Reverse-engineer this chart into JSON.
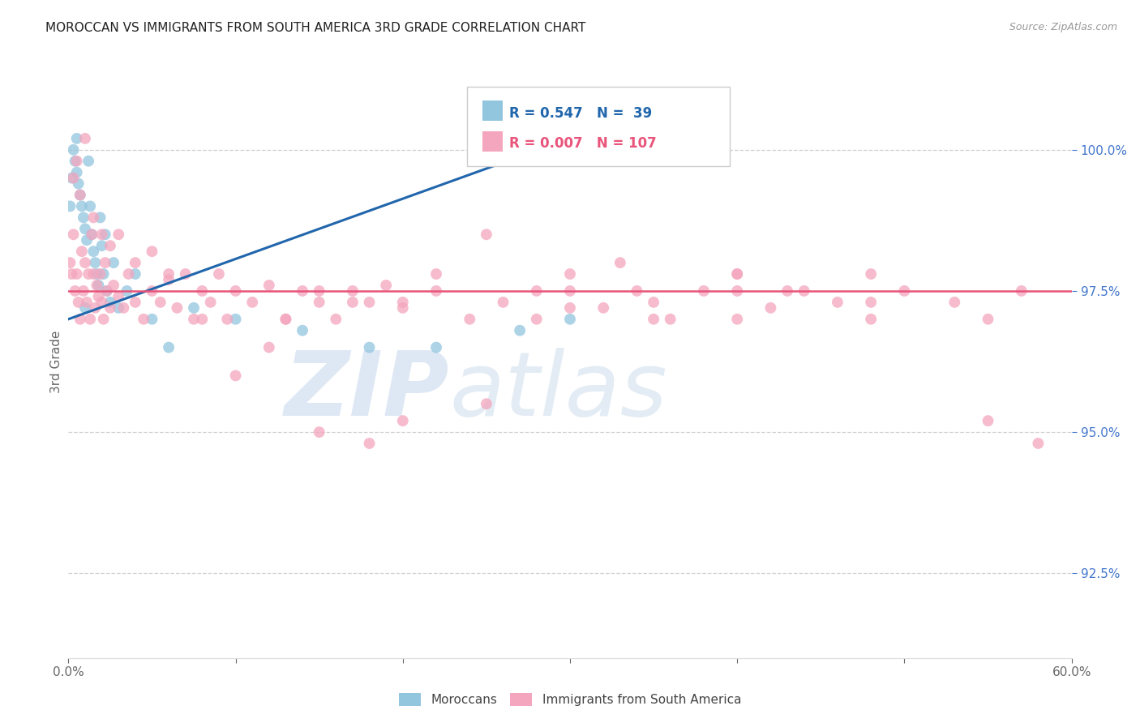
{
  "title": "MOROCCAN VS IMMIGRANTS FROM SOUTH AMERICA 3RD GRADE CORRELATION CHART",
  "source": "Source: ZipAtlas.com",
  "ylabel": "3rd Grade",
  "xlim": [
    0.0,
    60.0
  ],
  "ylim": [
    91.0,
    101.5
  ],
  "legend_blue_r": "R = 0.547",
  "legend_blue_n": "N =  39",
  "legend_pink_r": "R = 0.007",
  "legend_pink_n": "N = 107",
  "blue_color": "#92c5de",
  "pink_color": "#f4a6be",
  "blue_line_color": "#2166ac",
  "pink_line_color": "#e8547a",
  "watermark_zip": "ZIP",
  "watermark_atlas": "atlas",
  "watermark_color_zip": "#b8cfe8",
  "watermark_color_atlas": "#b8cfe8",
  "watermark_alpha": 0.5,
  "blue_scatter_x": [
    0.1,
    0.2,
    0.3,
    0.4,
    0.5,
    0.6,
    0.7,
    0.8,
    0.9,
    1.0,
    1.1,
    1.2,
    1.3,
    1.4,
    1.5,
    1.6,
    1.7,
    1.8,
    1.9,
    2.0,
    2.1,
    2.2,
    2.3,
    2.5,
    2.7,
    3.0,
    3.5,
    4.0,
    5.0,
    6.0,
    7.5,
    10.0,
    14.0,
    18.0,
    22.0,
    27.0,
    30.0,
    0.5,
    1.0
  ],
  "blue_scatter_y": [
    99.0,
    99.5,
    100.0,
    99.8,
    99.6,
    99.4,
    99.2,
    99.0,
    98.8,
    98.6,
    98.4,
    99.8,
    99.0,
    98.5,
    98.2,
    98.0,
    97.8,
    97.6,
    98.8,
    98.3,
    97.8,
    98.5,
    97.5,
    97.3,
    98.0,
    97.2,
    97.5,
    97.8,
    97.0,
    96.5,
    97.2,
    97.0,
    96.8,
    96.5,
    96.5,
    96.8,
    97.0,
    100.2,
    97.2
  ],
  "pink_scatter_x": [
    0.1,
    0.2,
    0.3,
    0.4,
    0.5,
    0.6,
    0.7,
    0.8,
    0.9,
    1.0,
    1.1,
    1.2,
    1.3,
    1.4,
    1.5,
    1.6,
    1.7,
    1.8,
    1.9,
    2.0,
    2.1,
    2.2,
    2.3,
    2.5,
    2.7,
    3.0,
    3.3,
    3.6,
    4.0,
    4.5,
    5.0,
    5.5,
    6.0,
    6.5,
    7.0,
    7.5,
    8.0,
    8.5,
    9.0,
    9.5,
    10.0,
    11.0,
    12.0,
    13.0,
    14.0,
    15.0,
    16.0,
    17.0,
    18.0,
    19.0,
    20.0,
    22.0,
    24.0,
    26.0,
    28.0,
    30.0,
    32.0,
    34.0,
    35.0,
    36.0,
    38.0,
    40.0,
    42.0,
    44.0,
    46.0,
    48.0,
    50.0,
    53.0,
    55.0,
    57.0,
    0.3,
    0.5,
    0.7,
    1.0,
    1.5,
    2.0,
    2.5,
    3.0,
    4.0,
    5.0,
    6.0,
    8.0,
    10.0,
    12.0,
    15.0,
    18.0,
    20.0,
    25.0,
    28.0,
    30.0,
    35.0,
    40.0,
    25.0,
    33.0,
    43.0,
    48.0,
    13.0,
    20.0,
    30.0,
    40.0,
    15.0,
    17.0,
    22.0,
    58.0,
    55.0,
    48.0,
    40.0
  ],
  "pink_scatter_y": [
    98.0,
    97.8,
    98.5,
    97.5,
    97.8,
    97.3,
    97.0,
    98.2,
    97.5,
    98.0,
    97.3,
    97.8,
    97.0,
    98.5,
    97.8,
    97.2,
    97.6,
    97.4,
    97.8,
    97.3,
    97.0,
    98.0,
    97.5,
    97.2,
    97.6,
    97.4,
    97.2,
    97.8,
    97.3,
    97.0,
    97.5,
    97.3,
    97.7,
    97.2,
    97.8,
    97.0,
    97.5,
    97.3,
    97.8,
    97.0,
    97.5,
    97.3,
    97.6,
    97.0,
    97.5,
    97.3,
    97.0,
    97.5,
    97.3,
    97.6,
    97.2,
    97.5,
    97.0,
    97.3,
    97.5,
    97.8,
    97.2,
    97.5,
    97.3,
    97.0,
    97.5,
    97.8,
    97.2,
    97.5,
    97.3,
    97.0,
    97.5,
    97.3,
    97.0,
    97.5,
    99.5,
    99.8,
    99.2,
    100.2,
    98.8,
    98.5,
    98.3,
    98.5,
    98.0,
    98.2,
    97.8,
    97.0,
    96.0,
    96.5,
    95.0,
    94.8,
    95.2,
    95.5,
    97.0,
    97.2,
    97.0,
    97.5,
    98.5,
    98.0,
    97.5,
    97.8,
    97.0,
    97.3,
    97.5,
    97.8,
    97.5,
    97.3,
    97.8,
    94.8,
    95.2,
    97.3,
    97.0
  ],
  "blue_trendline_x": [
    0.0,
    30.0
  ],
  "blue_trendline_y": [
    97.0,
    100.2
  ],
  "pink_trendline_x": [
    0.0,
    60.0
  ],
  "pink_trendline_y": [
    97.5,
    97.5
  ],
  "grid_color": "#d0d0d0",
  "grid_yticks": [
    92.5,
    95.0,
    97.5,
    100.0
  ],
  "background_color": "#ffffff",
  "legend_label_blue": "Moroccans",
  "legend_label_pink": "Immigrants from South America",
  "title_fontsize": 11,
  "right_axis_color": "#4477cc"
}
